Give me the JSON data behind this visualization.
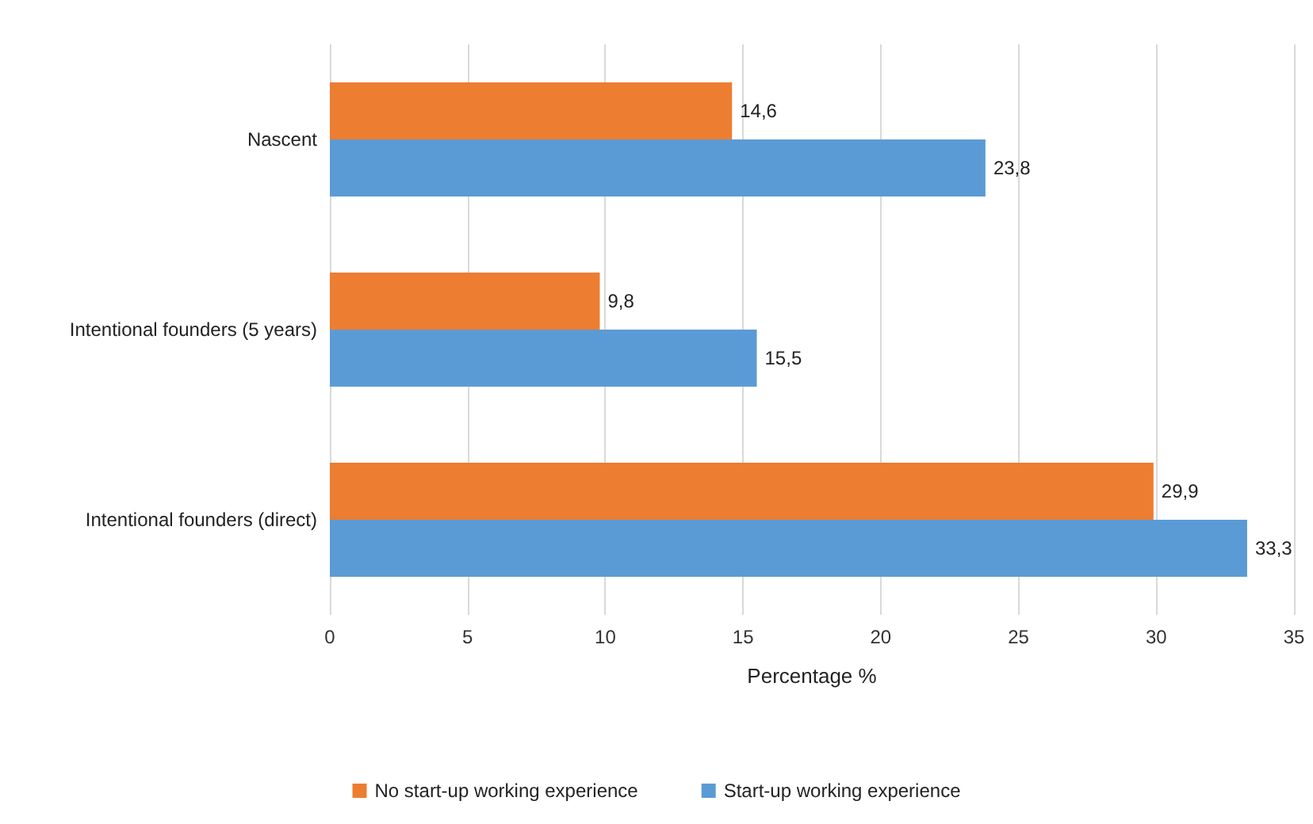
{
  "chart_data": {
    "type": "bar",
    "orientation": "horizontal",
    "xlabel": "Percentage %",
    "categories": [
      "Nascent",
      "Intentional founders (5 years)",
      "Intentional founders (direct)"
    ],
    "series": [
      {
        "name": "No start-up working experience",
        "color": "#ed7d31",
        "values": [
          14.6,
          9.8,
          29.9
        ],
        "value_labels": [
          "14,6",
          "9,8",
          "29,9"
        ]
      },
      {
        "name": "Start-up working experience",
        "color": "#5b9bd5",
        "values": [
          23.8,
          15.5,
          33.3
        ],
        "value_labels": [
          "23,8",
          "15,5",
          "33,3"
        ]
      }
    ],
    "xlim": [
      0,
      35
    ],
    "xticks": [
      0,
      5,
      10,
      15,
      20,
      25,
      30,
      35
    ],
    "grid": "x",
    "legend": "bottom"
  }
}
